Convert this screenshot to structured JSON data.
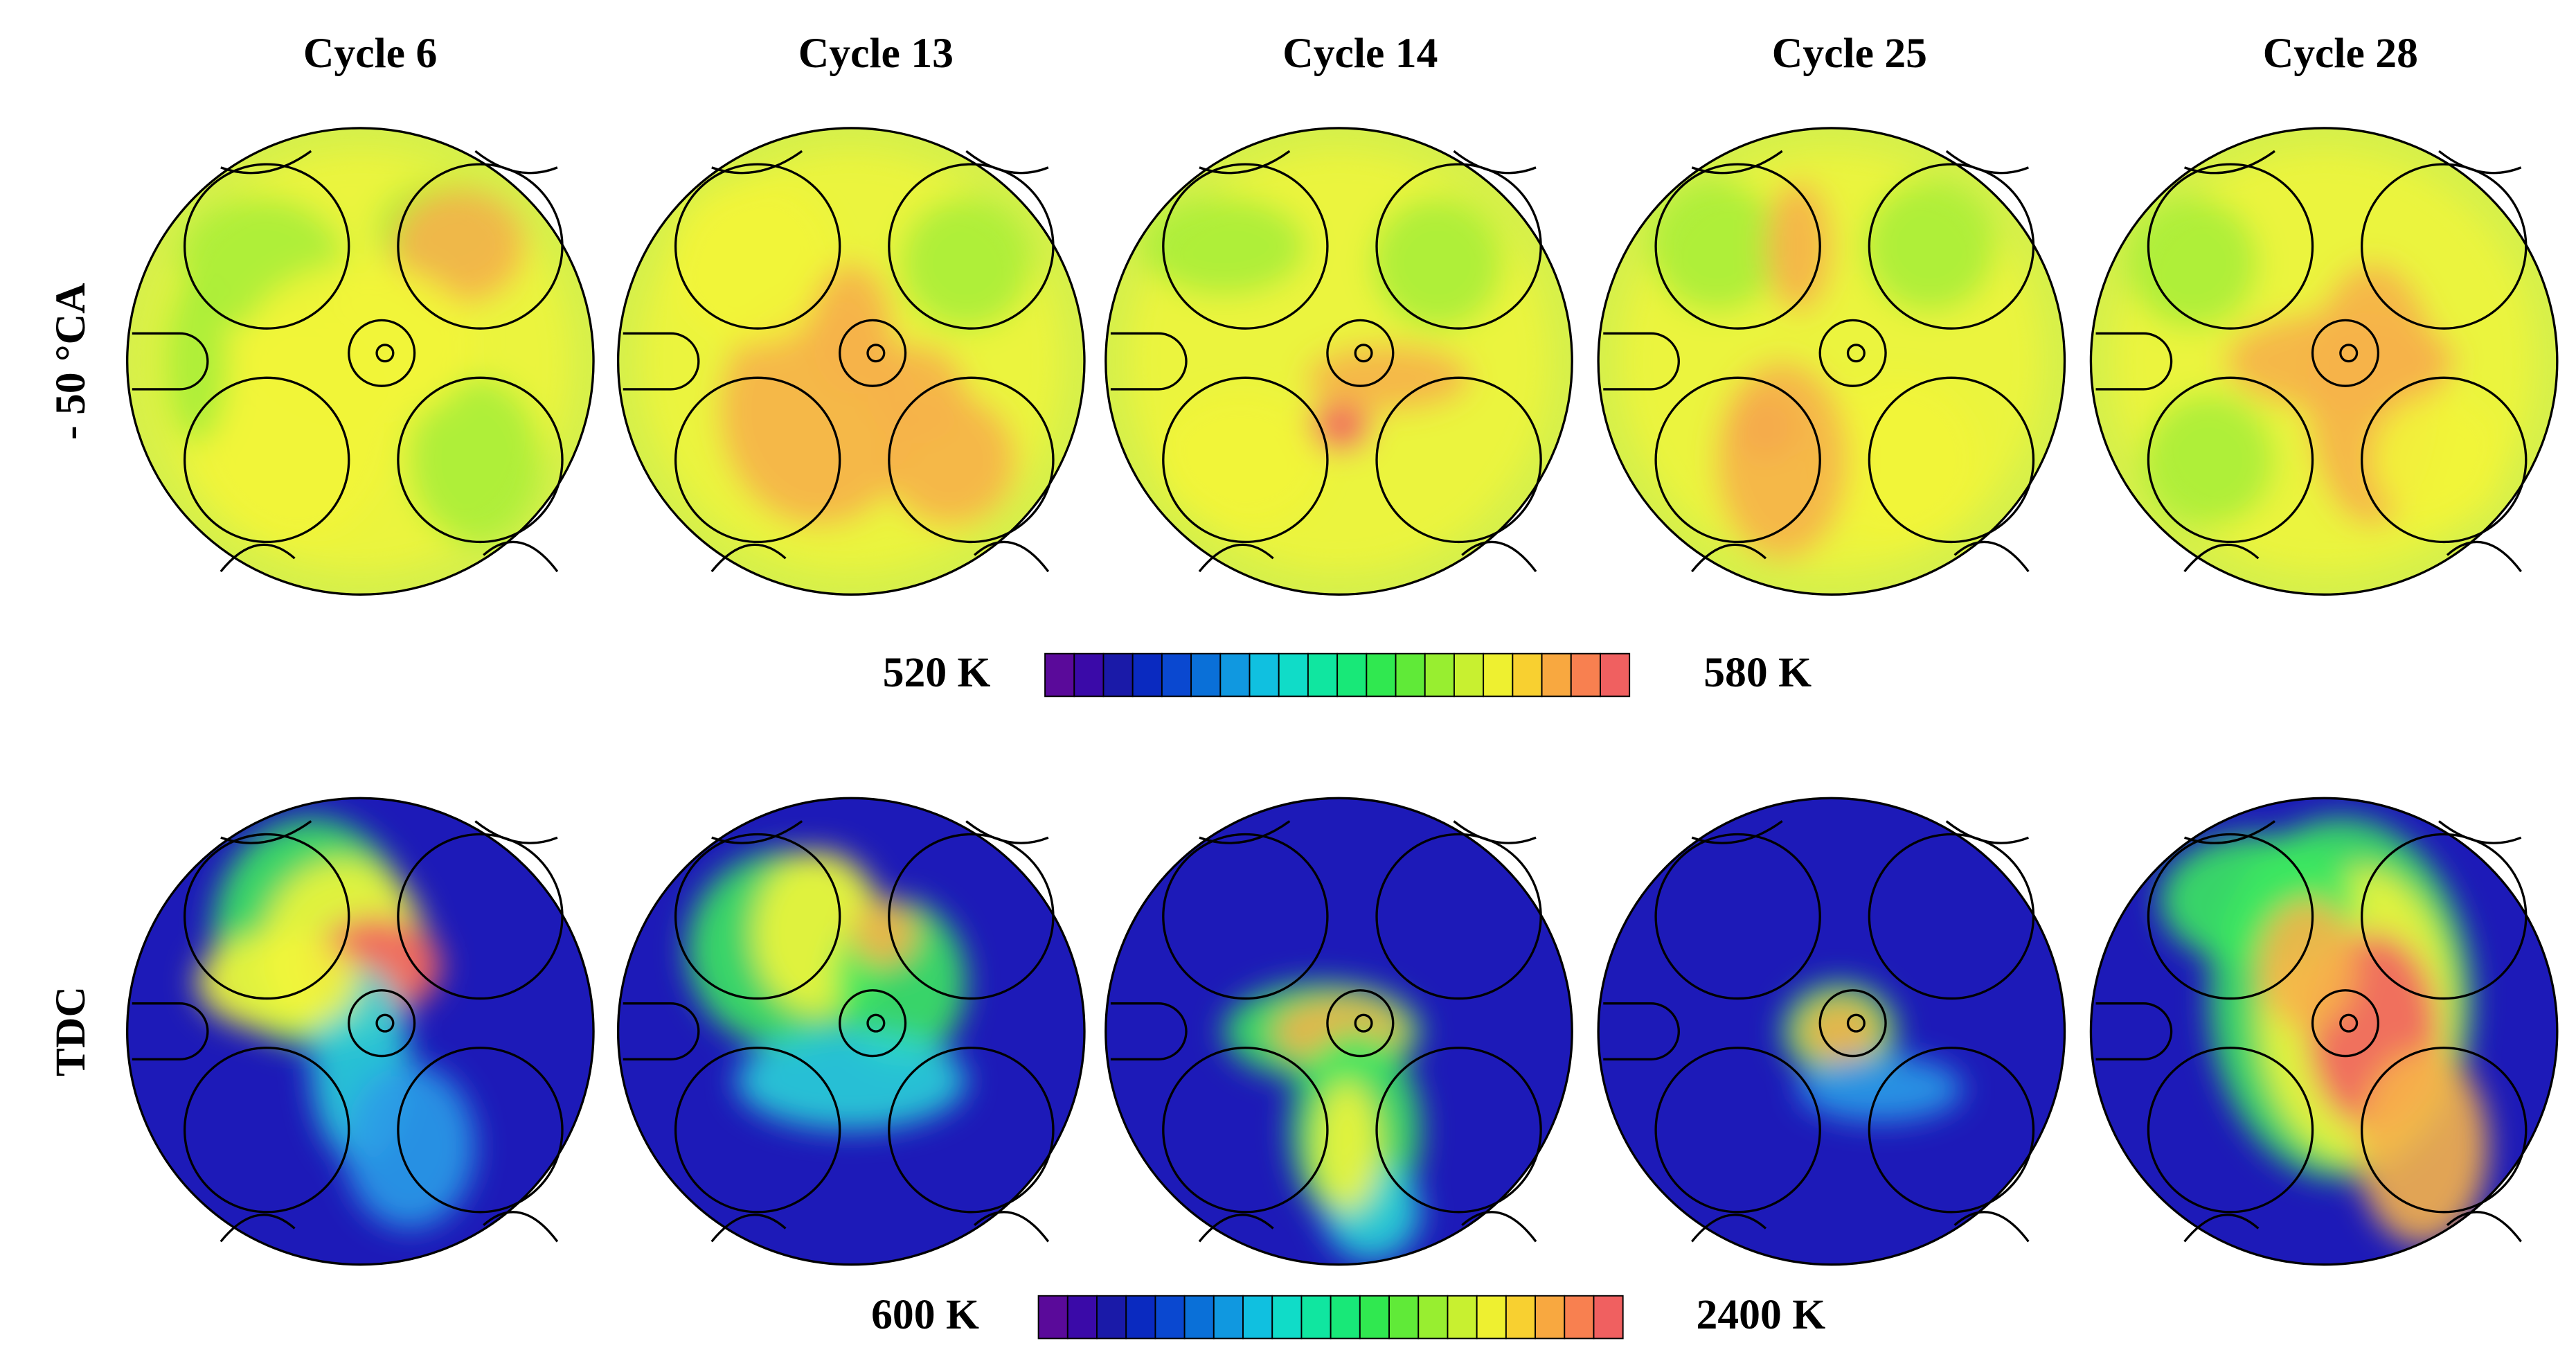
{
  "columns": [
    "Cycle 6",
    "Cycle 13",
    "Cycle 14",
    "Cycle 25",
    "Cycle 28"
  ],
  "rows": [
    {
      "label": "- 50 °CA",
      "colorbar": {
        "min_label": "520 K",
        "max_label": "580 K"
      }
    },
    {
      "label": "TDC",
      "colorbar": {
        "min_label": "600 K",
        "max_label": "2400 K"
      }
    }
  ]
}
